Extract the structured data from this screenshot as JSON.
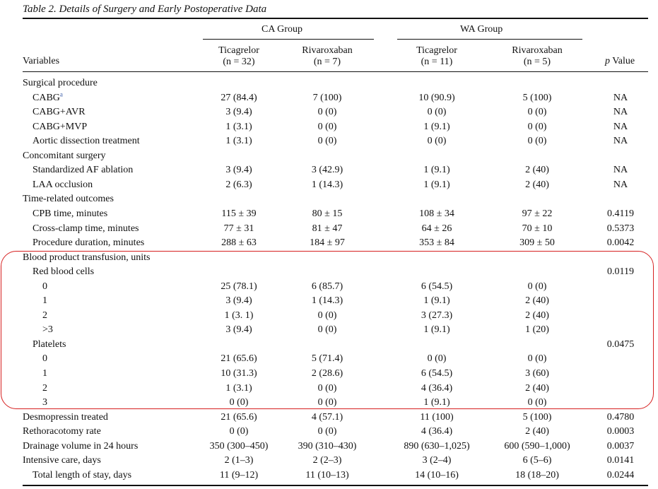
{
  "title": "Table 2.  Details of Surgery and Early Postoperative Data",
  "header": {
    "group1": "CA Group",
    "group2": "WA Group",
    "variables": "Variables",
    "pvalue_p": "p",
    "pvalue_rest": " Value",
    "cols": [
      {
        "name": "Ticagrelor",
        "n": "(n = 32)"
      },
      {
        "name": "Rivaroxaban",
        "n": "(n = 7)"
      },
      {
        "name": "Ticagrelor",
        "n": "(n = 11)"
      },
      {
        "name": "Rivaroxaban",
        "n": "(n = 5)"
      }
    ]
  },
  "rows": [
    {
      "label": "Surgical procedure",
      "indent": 0,
      "vals": [
        "",
        "",
        "",
        ""
      ],
      "p": ""
    },
    {
      "label": "CABG",
      "sup": "a",
      "indent": 1,
      "vals": [
        "27 (84.4)",
        "7 (100)",
        "10 (90.9)",
        "5 (100)"
      ],
      "p": "NA"
    },
    {
      "label": "CABG+AVR",
      "indent": 1,
      "vals": [
        "3 (9.4)",
        "0 (0)",
        "0 (0)",
        "0 (0)"
      ],
      "p": "NA"
    },
    {
      "label": "CABG+MVP",
      "indent": 1,
      "vals": [
        "1 (3.1)",
        "0 (0)",
        "1 (9.1)",
        "0 (0)"
      ],
      "p": "NA"
    },
    {
      "label": "Aortic dissection treatment",
      "indent": 1,
      "vals": [
        "1 (3.1)",
        "0 (0)",
        "0 (0)",
        "0 (0)"
      ],
      "p": "NA"
    },
    {
      "label": "Concomitant surgery",
      "indent": 0,
      "vals": [
        "",
        "",
        "",
        ""
      ],
      "p": ""
    },
    {
      "label": "Standardized AF ablation",
      "indent": 1,
      "vals": [
        "3 (9.4)",
        "3 (42.9)",
        "1 (9.1)",
        "2 (40)"
      ],
      "p": "NA"
    },
    {
      "label": "LAA occlusion",
      "indent": 1,
      "vals": [
        "2 (6.3)",
        "1 (14.3)",
        "1 (9.1)",
        "2 (40)"
      ],
      "p": "NA"
    },
    {
      "label": "Time-related outcomes",
      "indent": 0,
      "vals": [
        "",
        "",
        "",
        ""
      ],
      "p": ""
    },
    {
      "label": "CPB time, minutes",
      "indent": 1,
      "vals": [
        "115 ± 39",
        "80 ± 15",
        "108 ± 34",
        "97 ± 22"
      ],
      "p": "0.4119"
    },
    {
      "label": "Cross-clamp time, minutes",
      "indent": 1,
      "vals": [
        "77 ± 31",
        "81 ± 47",
        "64 ± 26",
        "70 ± 10"
      ],
      "p": "0.5373"
    },
    {
      "label": "Procedure duration, minutes",
      "indent": 1,
      "vals": [
        "288 ± 63",
        "184 ± 97",
        "353 ± 84",
        "309 ± 50"
      ],
      "p": "0.0042"
    },
    {
      "label": "Blood product transfusion, units",
      "indent": 0,
      "vals": [
        "",
        "",
        "",
        ""
      ],
      "p": ""
    },
    {
      "label": "Red blood cells",
      "indent": 1,
      "vals": [
        "",
        "",
        "",
        ""
      ],
      "p": "0.0119"
    },
    {
      "label": "0",
      "indent": 2,
      "vals": [
        "25 (78.1)",
        "6 (85.7)",
        "6 (54.5)",
        "0 (0)"
      ],
      "p": ""
    },
    {
      "label": "1",
      "indent": 2,
      "vals": [
        "3 (9.4)",
        "1 (14.3)",
        "1 (9.1)",
        "2 (40)"
      ],
      "p": ""
    },
    {
      "label": "2",
      "indent": 2,
      "vals": [
        "1 (3. 1)",
        "0 (0)",
        "3 (27.3)",
        "2 (40)"
      ],
      "p": ""
    },
    {
      "label": ">3",
      "indent": 2,
      "vals": [
        "3 (9.4)",
        "0 (0)",
        "1 (9.1)",
        "1 (20)"
      ],
      "p": ""
    },
    {
      "label": "Platelets",
      "indent": 1,
      "vals": [
        "",
        "",
        "",
        ""
      ],
      "p": "0.0475"
    },
    {
      "label": "0",
      "indent": 2,
      "vals": [
        "21 (65.6)",
        "5 (71.4)",
        "0 (0)",
        "0 (0)"
      ],
      "p": ""
    },
    {
      "label": "1",
      "indent": 2,
      "vals": [
        "10 (31.3)",
        "2 (28.6)",
        "6 (54.5)",
        "3 (60)"
      ],
      "p": ""
    },
    {
      "label": "2",
      "indent": 2,
      "vals": [
        "1 (3.1)",
        "0 (0)",
        "4 (36.4)",
        "2 (40)"
      ],
      "p": ""
    },
    {
      "label": "3",
      "indent": 2,
      "vals": [
        "0 (0)",
        "0 (0)",
        "1 (9.1)",
        "0 (0)"
      ],
      "p": ""
    },
    {
      "label": "Desmopressin treated",
      "indent": 0,
      "vals": [
        "21 (65.6)",
        "4 (57.1)",
        "11 (100)",
        "5 (100)"
      ],
      "p": "0.4780"
    },
    {
      "label": "Rethoracotomy rate",
      "indent": 0,
      "vals": [
        "0 (0)",
        "0 (0)",
        "4 (36.4)",
        "2 (40)"
      ],
      "p": "0.0003"
    },
    {
      "label": "Drainage volume in 24 hours",
      "indent": 0,
      "vals": [
        "350 (300–450)",
        "390 (310–430)",
        "890 (630–1,025)",
        "600 (590–1,000)"
      ],
      "p": "0.0037"
    },
    {
      "label": "Intensive care, days",
      "indent": 0,
      "vals": [
        "2 (1–3)",
        "2 (2–3)",
        "3 (2–4)",
        "6 (5–6)"
      ],
      "p": "0.0141"
    },
    {
      "label": "Total length of stay, days",
      "indent": 1,
      "vals": [
        "11 (9–12)",
        "11 (10–13)",
        "14 (10–16)",
        "18 (18–20)"
      ],
      "p": "0.0244"
    }
  ],
  "highlight_color": "#d62020"
}
